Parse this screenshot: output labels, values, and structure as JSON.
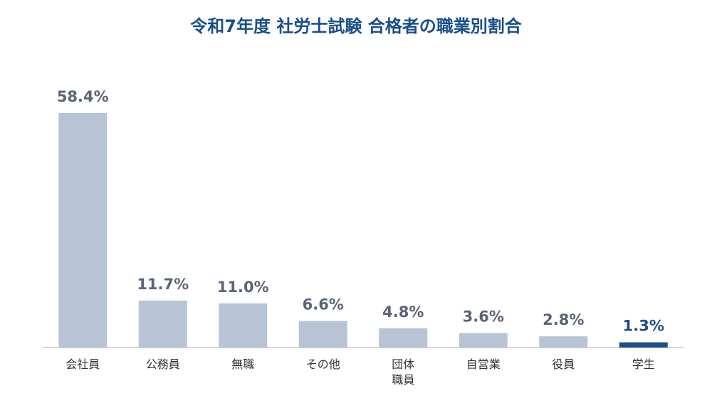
{
  "chart_data": {
    "type": "bar",
    "title": "令和7年度 社労士試験 合格者の職業別割合",
    "categories": [
      "会社員",
      "公務員",
      "無職",
      "その他",
      "団体\n職員",
      "自営業",
      "役員",
      "学生"
    ],
    "values": [
      58.4,
      11.7,
      11.0,
      6.6,
      4.8,
      3.6,
      2.8,
      1.3
    ],
    "value_labels": [
      "58.4%",
      "11.7%",
      "11.0%",
      "6.6%",
      "4.8%",
      "3.6%",
      "2.8%",
      "1.3%"
    ],
    "colors": [
      "#b8c4d6",
      "#b8c4d6",
      "#b8c4d6",
      "#b8c4d6",
      "#b8c4d6",
      "#b8c4d6",
      "#b8c4d6",
      "#1a4f8a"
    ],
    "label_colors": [
      "#5a6478",
      "#5a6478",
      "#5a6478",
      "#5a6478",
      "#5a6478",
      "#5a6478",
      "#5a6478",
      "#1a4f8a"
    ]
  }
}
